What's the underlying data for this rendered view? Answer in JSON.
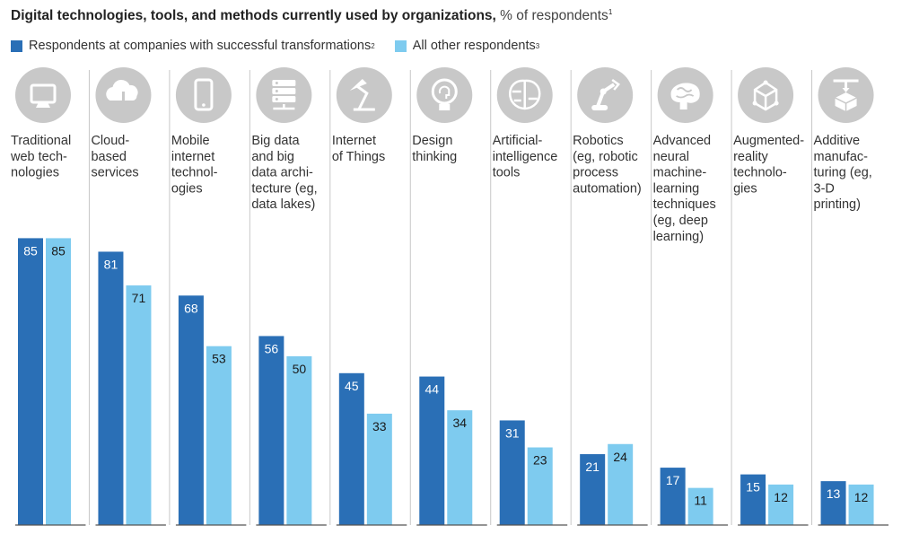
{
  "title": {
    "bold": "Digital technologies, tools, and methods currently used by organizations,",
    "unit": "% of respondents",
    "note": "1"
  },
  "colors": {
    "successful": "#2a6fb6",
    "other": "#7ecbef",
    "icon_circle": "#c8c8c8",
    "separator": "#c8c8c8",
    "baseline": "#555555"
  },
  "chart_data": {
    "type": "bar",
    "ylim": [
      0,
      100
    ],
    "legend_position": "top-left",
    "categories": [
      {
        "label": [
          "Traditional",
          "web tech-",
          "nologies"
        ],
        "icon": "monitor-icon"
      },
      {
        "label": [
          "Cloud-",
          "based",
          "services"
        ],
        "icon": "cloud-icon"
      },
      {
        "label": [
          "Mobile",
          "internet",
          "technol-",
          "ogies"
        ],
        "icon": "smartphone-icon"
      },
      {
        "label": [
          "Big data",
          "and big",
          "data archi-",
          "tecture (eg,",
          "data lakes)"
        ],
        "icon": "server-icon"
      },
      {
        "label": [
          "Internet",
          "of Things"
        ],
        "icon": "lamp-icon"
      },
      {
        "label": [
          "Design",
          "thinking"
        ],
        "icon": "lightbulb-head-icon"
      },
      {
        "label": [
          "Artificial-",
          "intelligence",
          "tools"
        ],
        "icon": "brain-circuit-icon"
      },
      {
        "label": [
          "Robotics",
          "(eg, robotic",
          "process",
          "automation)"
        ],
        "icon": "robot-arm-icon"
      },
      {
        "label": [
          "Advanced",
          "neural",
          "machine-",
          "learning",
          "techniques",
          "(eg, deep",
          "learning)"
        ],
        "icon": "brain-icon"
      },
      {
        "label": [
          "Augmented-",
          "reality",
          "technolo-",
          "gies"
        ],
        "icon": "cube-icon"
      },
      {
        "label": [
          "Additive",
          "manufac-",
          "turing (eg,",
          "3-D",
          "printing)"
        ],
        "icon": "3d-printer-icon"
      }
    ],
    "series": [
      {
        "name": "Respondents at companies with successful transformations",
        "note": "2",
        "values": [
          85,
          81,
          68,
          56,
          45,
          44,
          31,
          21,
          17,
          15,
          13
        ]
      },
      {
        "name": "All other respondents",
        "note": "3",
        "values": [
          85,
          71,
          53,
          50,
          33,
          34,
          23,
          24,
          11,
          12,
          12
        ]
      }
    ]
  }
}
